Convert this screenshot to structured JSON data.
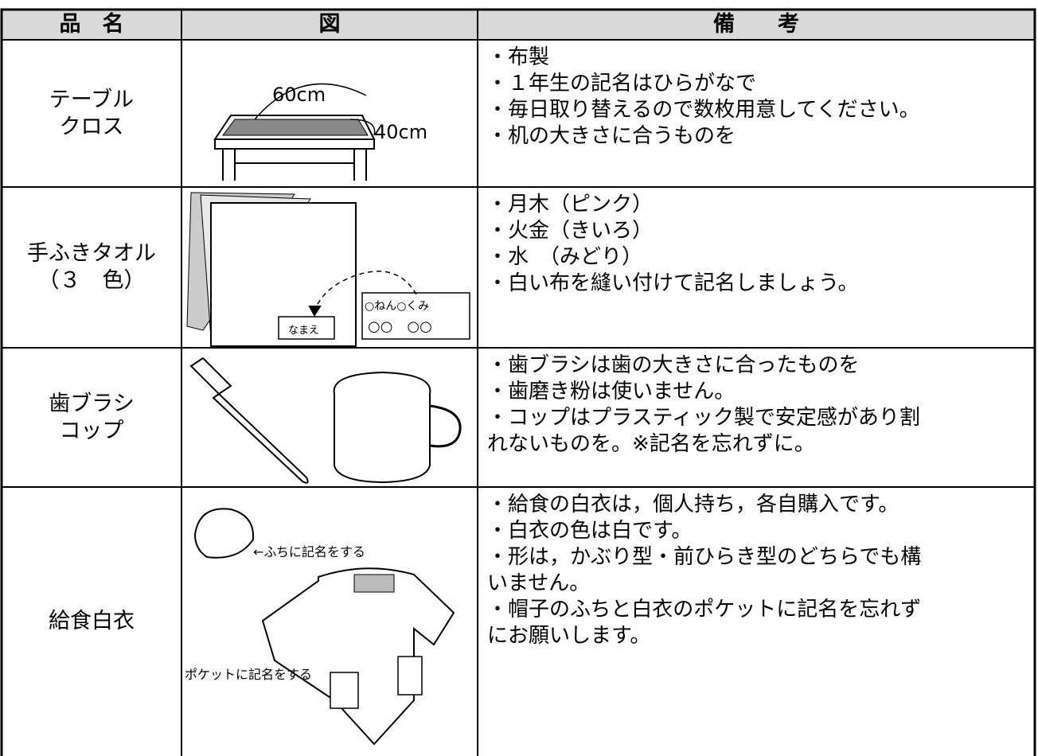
{
  "header": {
    "item": "品　名",
    "figure": "図",
    "notes": "備　　考"
  },
  "rows": [
    {
      "item": [
        "テーブル",
        "クロス"
      ],
      "figure_labels": [
        "60cm",
        "40cm"
      ],
      "notes": [
        "・布製",
        "・１年生の記名はひらがなで",
        "・毎日取り替えるので数枚用意してください。",
        "・机の大きさに合うものを"
      ]
    },
    {
      "item": [
        "手ふきタオル",
        "（３　色）"
      ],
      "figure_labels": [
        "○ねん○くみ",
        "○○　○○",
        "なまえ"
      ],
      "notes": [
        "・月木（ピンク）",
        "・火金（きいろ）",
        "・水　（みどり）",
        "・白い布を縫い付けて記名しましょう。"
      ]
    },
    {
      "item": [
        "歯ブラシ",
        "コップ"
      ],
      "figure_labels": [],
      "notes": [
        "・歯ブラシは歯の大きさに合ったものを",
        "・歯磨き粉は使いません。",
        "・コップはプラスティック製で安定感があり割",
        "れないものを。※記名を忘れずに。"
      ]
    },
    {
      "item": [
        "給食白衣"
      ],
      "figure_labels": [
        "←ふちに記名をする",
        "ポケットに記名をする"
      ],
      "notes": [
        "・給食の白衣は，個人持ち，各自購入です。",
        "・白衣の色は白です。",
        "・形は，かぶり型・前ひらき型のどちらでも構",
        "いません。",
        "・帽子のふちと白衣のポケットに記名を忘れず",
        "にお願いします。"
      ]
    }
  ]
}
